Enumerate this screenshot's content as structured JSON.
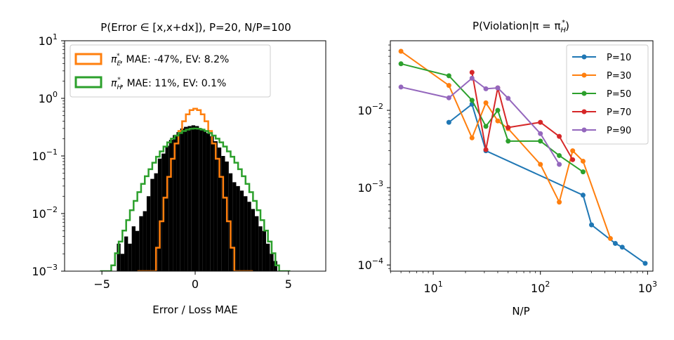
{
  "chart_data": [
    {
      "type": "histogram",
      "title": "P(Error ∈ [x,x+dx]), P=20, N/P=100",
      "xlabel": "Error / Loss MAE",
      "ylabel": "",
      "xlim": [
        -7,
        7
      ],
      "ylim_log10": [
        -3,
        1
      ],
      "yscale": "log",
      "xticks": [
        {
          "v": -5,
          "label": "−5"
        },
        {
          "v": 0,
          "label": "0"
        },
        {
          "v": 5,
          "label": "5"
        }
      ],
      "yticks": [
        {
          "exp": 1,
          "base": "10",
          "sup": "1"
        },
        {
          "exp": 0,
          "base": "10",
          "sup": "0"
        },
        {
          "exp": -1,
          "base": "10",
          "sup": "−1"
        },
        {
          "exp": -2,
          "base": "10",
          "sup": "−2"
        },
        {
          "exp": -3,
          "base": "10",
          "sup": "−3"
        }
      ],
      "colors": {
        "empirical": "#000000",
        "piE": "#ff7f0e",
        "piH": "#2ca02c"
      },
      "legend": {
        "position": "top-left",
        "items": [
          {
            "symbol": "π",
            "sub": "E",
            "sup": "*",
            "text": ", MAE: -47%, EV: 8.2%",
            "color": "#ff7f0e"
          },
          {
            "symbol": "π",
            "sub": "H",
            "sup": "*",
            "text": ", MAE: 11%, EV: 0.1%",
            "color": "#2ca02c"
          }
        ]
      },
      "empirical_bin_width": 0.1,
      "empirical": [
        {
          "x": -4.3,
          "y": 0.001
        },
        {
          "x": -4.1,
          "y": 0.003
        },
        {
          "x": -3.9,
          "y": 0.002
        },
        {
          "x": -3.7,
          "y": 0.004
        },
        {
          "x": -3.5,
          "y": 0.003
        },
        {
          "x": -3.3,
          "y": 0.006
        },
        {
          "x": -3.1,
          "y": 0.005
        },
        {
          "x": -2.9,
          "y": 0.009
        },
        {
          "x": -2.7,
          "y": 0.011
        },
        {
          "x": -2.5,
          "y": 0.02
        },
        {
          "x": -2.3,
          "y": 0.04
        },
        {
          "x": -2.1,
          "y": 0.05
        },
        {
          "x": -1.9,
          "y": 0.09
        },
        {
          "x": -1.7,
          "y": 0.11
        },
        {
          "x": -1.5,
          "y": 0.15
        },
        {
          "x": -1.3,
          "y": 0.19
        },
        {
          "x": -1.1,
          "y": 0.23
        },
        {
          "x": -0.9,
          "y": 0.26
        },
        {
          "x": -0.7,
          "y": 0.3
        },
        {
          "x": -0.5,
          "y": 0.32
        },
        {
          "x": -0.3,
          "y": 0.33
        },
        {
          "x": -0.1,
          "y": 0.34
        },
        {
          "x": 0.1,
          "y": 0.33
        },
        {
          "x": 0.3,
          "y": 0.3
        },
        {
          "x": 0.5,
          "y": 0.28
        },
        {
          "x": 0.7,
          "y": 0.25
        },
        {
          "x": 0.9,
          "y": 0.22
        },
        {
          "x": 1.1,
          "y": 0.18
        },
        {
          "x": 1.3,
          "y": 0.14
        },
        {
          "x": 1.5,
          "y": 0.1
        },
        {
          "x": 1.7,
          "y": 0.08
        },
        {
          "x": 1.9,
          "y": 0.05
        },
        {
          "x": 2.1,
          "y": 0.035
        },
        {
          "x": 2.3,
          "y": 0.03
        },
        {
          "x": 2.5,
          "y": 0.025
        },
        {
          "x": 2.7,
          "y": 0.02
        },
        {
          "x": 2.9,
          "y": 0.016
        },
        {
          "x": 3.1,
          "y": 0.012
        },
        {
          "x": 3.3,
          "y": 0.009
        },
        {
          "x": 3.5,
          "y": 0.006
        },
        {
          "x": 3.7,
          "y": 0.005
        },
        {
          "x": 3.9,
          "y": 0.003
        },
        {
          "x": 4.1,
          "y": 0.002
        },
        {
          "x": 4.3,
          "y": 0.0015
        }
      ],
      "gaussian_piE": {
        "amplitude": 0.66,
        "sigma": 0.6,
        "range": [
          -3.0,
          3.0
        ],
        "step": 0.2
      },
      "gaussian_piH": {
        "amplitude": 0.3,
        "sigma": 1.33,
        "range": [
          -5.0,
          5.0
        ],
        "step": 0.2
      }
    },
    {
      "type": "line",
      "title": "P(Violation|π = π",
      "title_sub": "H",
      "title_sup": "*",
      "title_end": ")",
      "xlabel": "N/P",
      "ylabel": "",
      "xscale": "log",
      "yscale": "log",
      "xlim_log10": [
        0.6,
        3.05
      ],
      "ylim_log10": [
        -4.08,
        -1.1
      ],
      "xticks": [
        {
          "exp": 1,
          "base": "10",
          "sup": "1"
        },
        {
          "exp": 2,
          "base": "10",
          "sup": "2"
        },
        {
          "exp": 3,
          "base": "10",
          "sup": "3"
        }
      ],
      "yticks": [
        {
          "exp": -2,
          "base": "10",
          "sup": "−2"
        },
        {
          "exp": -3,
          "base": "10",
          "sup": "−3"
        },
        {
          "exp": -4,
          "base": "10",
          "sup": "−4"
        }
      ],
      "legend_position": "top-right",
      "series": [
        {
          "name": "P=10",
          "color": "#1f77b4",
          "points": [
            [
              14,
              0.007
            ],
            [
              23,
              0.012
            ],
            [
              31,
              0.003
            ],
            [
              250,
              0.0008
            ],
            [
              300,
              0.00033
            ],
            [
              500,
              0.00019
            ],
            [
              580,
              0.00017
            ],
            [
              950,
              0.000105
            ]
          ]
        },
        {
          "name": "P=30",
          "color": "#ff7f0e",
          "points": [
            [
              5,
              0.058
            ],
            [
              14,
              0.021
            ],
            [
              23,
              0.0044
            ],
            [
              31,
              0.0125
            ],
            [
              40,
              0.0073
            ],
            [
              50,
              0.0058
            ],
            [
              100,
              0.002
            ],
            [
              150,
              0.00065
            ],
            [
              200,
              0.003
            ],
            [
              250,
              0.0022
            ],
            [
              450,
              0.00022
            ]
          ]
        },
        {
          "name": "P=50",
          "color": "#2ca02c",
          "points": [
            [
              5,
              0.04
            ],
            [
              14,
              0.028
            ],
            [
              23,
              0.0135
            ],
            [
              31,
              0.0062
            ],
            [
              40,
              0.01
            ],
            [
              50,
              0.004
            ],
            [
              100,
              0.004
            ],
            [
              150,
              0.0026
            ],
            [
              250,
              0.0016
            ]
          ]
        },
        {
          "name": "P=70",
          "color": "#d62728",
          "points": [
            [
              23,
              0.031
            ],
            [
              31,
              0.0031
            ],
            [
              40,
              0.0195
            ],
            [
              50,
              0.006
            ],
            [
              100,
              0.007
            ],
            [
              150,
              0.0046
            ],
            [
              200,
              0.0023
            ]
          ]
        },
        {
          "name": "P=90",
          "color": "#9467bd",
          "points": [
            [
              5,
              0.02
            ],
            [
              14,
              0.0145
            ],
            [
              23,
              0.026
            ],
            [
              31,
              0.019
            ],
            [
              40,
              0.0195
            ],
            [
              50,
              0.0143
            ],
            [
              100,
              0.005
            ],
            [
              150,
              0.002
            ]
          ]
        }
      ]
    }
  ]
}
